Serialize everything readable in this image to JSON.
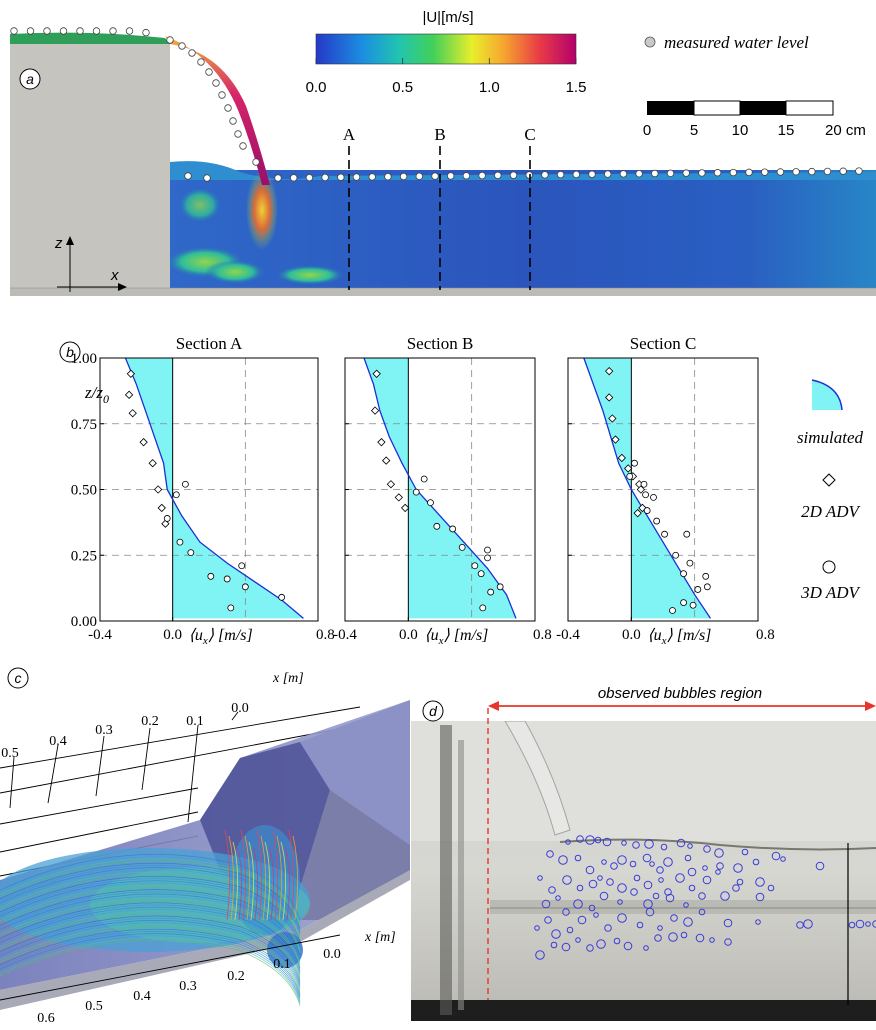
{
  "panel_a": {
    "label": "a",
    "colorbar_title": "|U|[m/s]",
    "colorbar_ticks": [
      "0.0",
      "0.5",
      "1.0",
      "1.5"
    ],
    "legend_text": "measured water level",
    "scalebar_ticks": [
      "0",
      "5",
      "10",
      "15",
      "20 cm"
    ],
    "sections": [
      "A",
      "B",
      "C"
    ],
    "axis_z": "z",
    "axis_x": "x",
    "colors": {
      "low": "#2a4fb8",
      "mid": "#33cc66",
      "high": "#c0105a",
      "wall": "#c6c4bf"
    }
  },
  "panel_b": {
    "label": "b",
    "ylabel": "z/z",
    "ylabel_sub": "0",
    "legend": {
      "simulated": "simulated",
      "adv2d": "2D ADV",
      "adv3d": "3D ADV"
    },
    "xlabel_main": "⟨u",
    "xlabel_sub": "x",
    "xlabel_rest": "⟩ [m/s]",
    "fill_color": "#80f4f4",
    "line_color": "#1a2fd6"
  },
  "chart_data": [
    {
      "type": "scatter",
      "title": "Section A",
      "xlim": [
        -0.4,
        0.8
      ],
      "ylim": [
        0.0,
        1.0
      ],
      "xticks": [
        "-0.4",
        "0.0",
        "0.8"
      ],
      "yticks": [
        "0.00",
        "0.25",
        "0.50",
        "0.75",
        "1.00"
      ],
      "grid": true,
      "simulated": {
        "x": [
          -0.26,
          -0.2,
          -0.15,
          -0.1,
          -0.05,
          -0.03,
          0.05,
          0.15,
          0.3,
          0.45,
          0.6,
          0.72
        ],
        "y": [
          1.0,
          0.9,
          0.8,
          0.7,
          0.6,
          0.5,
          0.4,
          0.3,
          0.22,
          0.15,
          0.08,
          0.01
        ]
      },
      "adv2d": {
        "x": [
          -0.23,
          -0.24,
          -0.22,
          -0.16,
          -0.11,
          -0.08,
          -0.06,
          -0.04
        ],
        "y": [
          0.94,
          0.86,
          0.79,
          0.68,
          0.6,
          0.5,
          0.43,
          0.37
        ]
      },
      "adv3d": {
        "x": [
          0.07,
          0.02,
          -0.03,
          0.04,
          0.1,
          0.38,
          0.6,
          0.4,
          0.21,
          0.32,
          0.3
        ],
        "y": [
          0.52,
          0.48,
          0.39,
          0.3,
          0.26,
          0.21,
          0.09,
          0.13,
          0.17,
          0.05,
          0.16
        ]
      }
    },
    {
      "type": "scatter",
      "title": "Section B",
      "xlim": [
        -0.4,
        0.8
      ],
      "ylim": [
        0.0,
        1.0
      ],
      "xticks": [
        "-0.4",
        "0.0",
        "0.8"
      ],
      "yticks": [
        "0.00",
        "0.25",
        "0.50",
        "0.75",
        "1.00"
      ],
      "grid": true,
      "simulated": {
        "x": [
          -0.28,
          -0.22,
          -0.18,
          -0.12,
          -0.04,
          0.05,
          0.2,
          0.35,
          0.5,
          0.62,
          0.68
        ],
        "y": [
          1.0,
          0.9,
          0.8,
          0.7,
          0.6,
          0.5,
          0.4,
          0.3,
          0.2,
          0.1,
          0.01
        ]
      },
      "adv2d": {
        "x": [
          -0.2,
          -0.21,
          -0.17,
          -0.14,
          -0.11,
          -0.06,
          -0.02
        ],
        "y": [
          0.94,
          0.8,
          0.68,
          0.61,
          0.52,
          0.47,
          0.43
        ]
      },
      "adv3d": {
        "x": [
          0.1,
          0.05,
          0.14,
          0.18,
          0.28,
          0.34,
          0.42,
          0.46,
          0.5,
          0.5,
          0.47,
          0.52,
          0.58
        ],
        "y": [
          0.54,
          0.49,
          0.45,
          0.36,
          0.35,
          0.28,
          0.21,
          0.18,
          0.27,
          0.24,
          0.05,
          0.11,
          0.13
        ]
      }
    },
    {
      "type": "scatter",
      "title": "Section C",
      "xlim": [
        -0.4,
        0.8
      ],
      "ylim": [
        0.0,
        1.0
      ],
      "xticks": [
        "-0.4",
        "0.0",
        "0.8"
      ],
      "yticks": [
        "0.00",
        "0.25",
        "0.50",
        "0.75",
        "1.00"
      ],
      "grid": true,
      "simulated": {
        "x": [
          -0.3,
          -0.24,
          -0.18,
          -0.13,
          -0.08,
          0.0,
          0.1,
          0.2,
          0.3,
          0.4,
          0.5
        ],
        "y": [
          1.0,
          0.9,
          0.8,
          0.7,
          0.6,
          0.5,
          0.4,
          0.3,
          0.2,
          0.1,
          0.01
        ]
      },
      "adv2d": {
        "x": [
          -0.14,
          -0.14,
          -0.12,
          -0.1,
          -0.06,
          -0.02,
          0.01,
          0.05,
          0.06,
          0.04,
          0.07
        ],
        "y": [
          0.95,
          0.85,
          0.77,
          0.69,
          0.62,
          0.58,
          0.55,
          0.52,
          0.5,
          0.41,
          0.43
        ]
      },
      "adv3d": {
        "x": [
          -0.01,
          0.02,
          0.08,
          0.09,
          0.14,
          0.1,
          0.16,
          0.21,
          0.28,
          0.37,
          0.33,
          0.35,
          0.42,
          0.47,
          0.48,
          0.39,
          0.33,
          0.26
        ],
        "y": [
          0.55,
          0.6,
          0.52,
          0.48,
          0.47,
          0.42,
          0.38,
          0.33,
          0.25,
          0.22,
          0.18,
          0.33,
          0.12,
          0.17,
          0.13,
          0.06,
          0.07,
          0.04
        ]
      }
    }
  ],
  "panel_c": {
    "label": "c",
    "axis_label_top": "x [m]",
    "axis_label_bottom": "x [m]",
    "top_ticks": [
      "0.0",
      "0.1",
      "0.2",
      "0.3",
      "0.4",
      "0.5"
    ],
    "bottom_ticks": [
      "0.0",
      "0.1",
      "0.2",
      "0.3",
      "0.4",
      "0.5",
      "0.6"
    ]
  },
  "panel_d": {
    "label": "d",
    "region_label": "observed bubbles region",
    "arrow_color": "#e8342a",
    "bubble_color": "#3b3bd8"
  }
}
